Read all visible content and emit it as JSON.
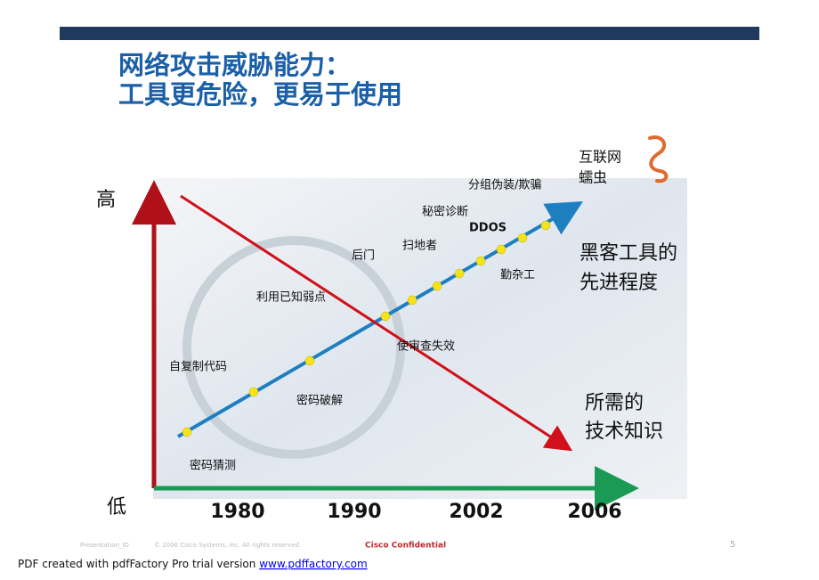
{
  "header": {
    "title_lines": [
      "网络攻击威胁能力：",
      "工具更危险，更易于使用"
    ]
  },
  "diagram": {
    "y_high": "高",
    "y_low": "低",
    "x_labels": [
      "1980",
      "1990",
      "2002",
      "2006"
    ],
    "attack_labels": [
      "密码猜测",
      "自复制代码",
      "密码破解",
      "利用已知弱点",
      "后门",
      "使审查失效",
      "扫地者",
      "秘密诊断",
      "DDOS",
      "勤杂工",
      "分组伪装/欺骗"
    ],
    "worm_label": [
      "互联网",
      "蠕虫"
    ],
    "tool_label": [
      "黑客工具的",
      "先进程度"
    ],
    "knowledge_label": [
      "所需的",
      "技术知识"
    ]
  },
  "footer": {
    "presentation_id": "Presentation_ID",
    "copyright": "© 2006 Cisco Systems, Inc. All rights reserved.",
    "confidential": "Cisco Confidential",
    "page": "5"
  },
  "pdf_note": {
    "text": "PDF created with pdfFactory Pro trial version ",
    "link": "www.pdffactory.com"
  }
}
